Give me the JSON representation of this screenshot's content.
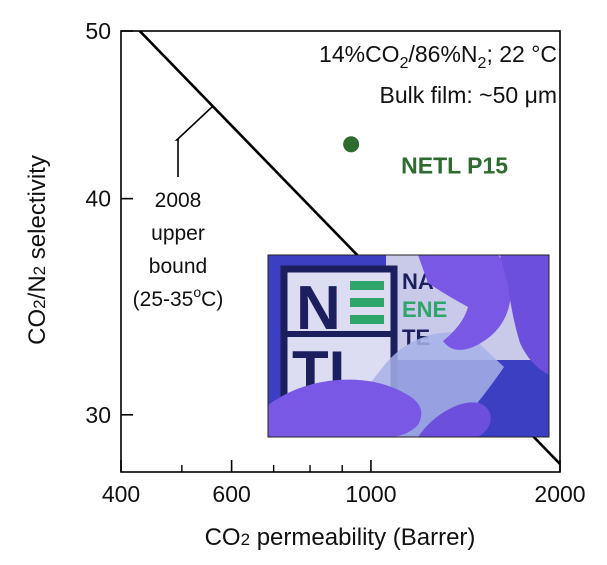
{
  "chart_data": {
    "type": "scatter",
    "title": "",
    "xlabel": {
      "prefix": "CO",
      "sub": "2",
      "rest": " permeability (Barrer)"
    },
    "ylabel": {
      "p1": "CO",
      "s1": "2",
      "p2": "/N",
      "s2": "2",
      "p3": " selectivity"
    },
    "x_scale": "log",
    "y_scale": "log",
    "xlim": [
      400,
      2000
    ],
    "ylim": [
      27.8,
      50
    ],
    "x_ticks": [
      400,
      600,
      1000,
      2000
    ],
    "x_tick_labels": [
      "400",
      "600",
      "1000",
      "2000"
    ],
    "x_minor_ticks": [
      500,
      700,
      800,
      900
    ],
    "y_ticks": [
      30,
      40,
      50
    ],
    "y_tick_labels": [
      "30",
      "40",
      "50"
    ],
    "grid": false,
    "conditions": {
      "line1": {
        "a": "14%CO",
        "b": "2",
        "c": "/86%N",
        "d": "2",
        "e": "; 22 °C"
      },
      "line2": "Bulk film: ~50 μm"
    },
    "upper_bound": {
      "lines": [
        "2008",
        "upper",
        "bound"
      ],
      "temp": {
        "a": "(25-35",
        "b": "o",
        "c": "C)"
      },
      "points": [
        {
          "x": 415,
          "y": 50.6
        },
        {
          "x": 2000,
          "y": 28.1
        }
      ]
    },
    "series": [
      {
        "name": "NETL P15",
        "color": "#2e6b2e",
        "points": [
          {
            "x": 930,
            "y": 43.0
          }
        ]
      }
    ],
    "inset_photo": {
      "logo_letters": [
        "N",
        "TL"
      ],
      "logo_text": [
        "NATI",
        "ENE",
        "TE"
      ],
      "colors": {
        "background": "#3d3fc2",
        "glove": "#7a58e6",
        "logo": "#1c1f5e",
        "accent": "#2ea66a",
        "film": "#a7b2e6"
      }
    }
  }
}
